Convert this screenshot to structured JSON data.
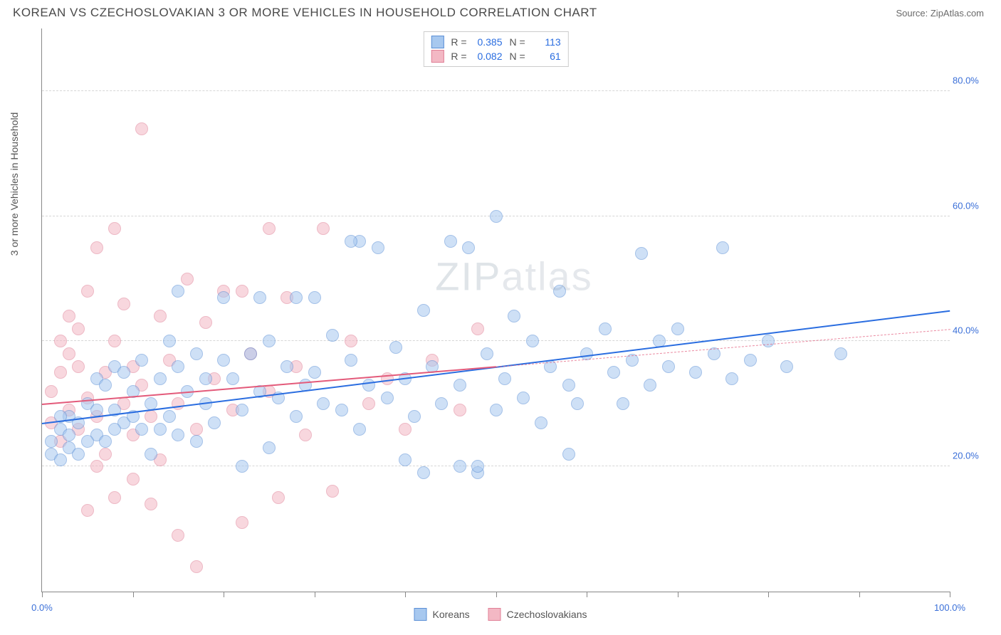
{
  "title": "KOREAN VS CZECHOSLOVAKIAN 3 OR MORE VEHICLES IN HOUSEHOLD CORRELATION CHART",
  "source": "Source: ZipAtlas.com",
  "watermark": "ZIPatlas",
  "ylabel": "3 or more Vehicles in Household",
  "colors": {
    "series_a_fill": "#a7c8ef",
    "series_a_stroke": "#5b8fd6",
    "series_a_line": "#2a6de0",
    "series_b_fill": "#f3b8c4",
    "series_b_stroke": "#e07f96",
    "series_b_line": "#e35a7a",
    "tick_label": "#3a6fd8",
    "grid": "#d6d6d6",
    "axis": "#888888",
    "title_color": "#4a4a4a",
    "background": "#ffffff"
  },
  "chart": {
    "type": "scatter",
    "xlim": [
      0,
      100
    ],
    "ylim": [
      0,
      90
    ],
    "yticks": [
      20,
      40,
      60,
      80
    ],
    "ytick_labels": [
      "20.0%",
      "40.0%",
      "60.0%",
      "80.0%"
    ],
    "xticks": [
      0,
      10,
      20,
      30,
      40,
      50,
      60,
      70,
      80,
      90,
      100
    ],
    "xtick_labels_shown": {
      "0": "0.0%",
      "100": "100.0%"
    },
    "point_radius": 9,
    "point_opacity": 0.55
  },
  "series": [
    {
      "key": "koreans",
      "label": "Koreans",
      "stats": {
        "R": "0.385",
        "N": "113"
      },
      "trend": {
        "x1": 0,
        "y1": 27,
        "x2": 100,
        "y2": 45,
        "dash_after_x": null
      },
      "points": [
        [
          1,
          22
        ],
        [
          1,
          24
        ],
        [
          2,
          21
        ],
        [
          2,
          26
        ],
        [
          3,
          23
        ],
        [
          3,
          28
        ],
        [
          4,
          27
        ],
        [
          5,
          30
        ],
        [
          6,
          25
        ],
        [
          6,
          34
        ],
        [
          7,
          24
        ],
        [
          8,
          29
        ],
        [
          8,
          36
        ],
        [
          9,
          27
        ],
        [
          10,
          32
        ],
        [
          11,
          26
        ],
        [
          11,
          37
        ],
        [
          12,
          30
        ],
        [
          13,
          34
        ],
        [
          14,
          28
        ],
        [
          15,
          36
        ],
        [
          15,
          25
        ],
        [
          16,
          32
        ],
        [
          17,
          38
        ],
        [
          18,
          30
        ],
        [
          19,
          27
        ],
        [
          20,
          47
        ],
        [
          21,
          34
        ],
        [
          22,
          29
        ],
        [
          23,
          38
        ],
        [
          24,
          32
        ],
        [
          25,
          40
        ],
        [
          26,
          31
        ],
        [
          27,
          36
        ],
        [
          28,
          47
        ],
        [
          28,
          28
        ],
        [
          29,
          33
        ],
        [
          30,
          35
        ],
        [
          31,
          30
        ],
        [
          32,
          41
        ],
        [
          33,
          29
        ],
        [
          34,
          37
        ],
        [
          35,
          26
        ],
        [
          36,
          33
        ],
        [
          37,
          55
        ],
        [
          38,
          31
        ],
        [
          39,
          39
        ],
        [
          40,
          34
        ],
        [
          41,
          28
        ],
        [
          42,
          45
        ],
        [
          43,
          36
        ],
        [
          44,
          30
        ],
        [
          45,
          56
        ],
        [
          46,
          33
        ],
        [
          47,
          55
        ],
        [
          48,
          19
        ],
        [
          49,
          38
        ],
        [
          50,
          29
        ],
        [
          50,
          60
        ],
        [
          51,
          34
        ],
        [
          52,
          44
        ],
        [
          53,
          31
        ],
        [
          54,
          40
        ],
        [
          55,
          27
        ],
        [
          56,
          36
        ],
        [
          57,
          48
        ],
        [
          58,
          33
        ],
        [
          59,
          30
        ],
        [
          60,
          38
        ],
        [
          62,
          42
        ],
        [
          63,
          35
        ],
        [
          64,
          30
        ],
        [
          65,
          37
        ],
        [
          66,
          54
        ],
        [
          67,
          33
        ],
        [
          68,
          40
        ],
        [
          69,
          36
        ],
        [
          70,
          42
        ],
        [
          72,
          35
        ],
        [
          74,
          38
        ],
        [
          75,
          55
        ],
        [
          76,
          34
        ],
        [
          78,
          37
        ],
        [
          80,
          40
        ],
        [
          82,
          36
        ],
        [
          88,
          38
        ],
        [
          48,
          20
        ],
        [
          40,
          21
        ],
        [
          35,
          56
        ],
        [
          30,
          47
        ],
        [
          25,
          23
        ],
        [
          22,
          20
        ],
        [
          20,
          37
        ],
        [
          18,
          34
        ],
        [
          17,
          24
        ],
        [
          15,
          48
        ],
        [
          14,
          40
        ],
        [
          13,
          26
        ],
        [
          12,
          22
        ],
        [
          10,
          28
        ],
        [
          9,
          35
        ],
        [
          8,
          26
        ],
        [
          7,
          33
        ],
        [
          6,
          29
        ],
        [
          5,
          24
        ],
        [
          4,
          22
        ],
        [
          3,
          25
        ],
        [
          2,
          28
        ],
        [
          24,
          47
        ],
        [
          34,
          56
        ],
        [
          42,
          19
        ],
        [
          46,
          20
        ],
        [
          58,
          22
        ]
      ]
    },
    {
      "key": "czechoslovakians",
      "label": "Czechoslovakians",
      "stats": {
        "R": "0.082",
        "N": "61"
      },
      "trend": {
        "x1": 0,
        "y1": 30,
        "x2": 100,
        "y2": 42,
        "dash_after_x": 50
      },
      "points": [
        [
          1,
          27
        ],
        [
          1,
          32
        ],
        [
          2,
          24
        ],
        [
          2,
          35
        ],
        [
          3,
          29
        ],
        [
          3,
          38
        ],
        [
          4,
          26
        ],
        [
          4,
          42
        ],
        [
          5,
          31
        ],
        [
          5,
          48
        ],
        [
          6,
          28
        ],
        [
          6,
          55
        ],
        [
          7,
          35
        ],
        [
          7,
          22
        ],
        [
          8,
          40
        ],
        [
          8,
          58
        ],
        [
          9,
          30
        ],
        [
          9,
          46
        ],
        [
          10,
          36
        ],
        [
          10,
          25
        ],
        [
          11,
          74
        ],
        [
          11,
          33
        ],
        [
          12,
          28
        ],
        [
          13,
          44
        ],
        [
          13,
          21
        ],
        [
          14,
          37
        ],
        [
          15,
          30
        ],
        [
          16,
          50
        ],
        [
          17,
          26
        ],
        [
          18,
          43
        ],
        [
          19,
          34
        ],
        [
          20,
          48
        ],
        [
          21,
          29
        ],
        [
          22,
          11
        ],
        [
          23,
          38
        ],
        [
          25,
          32
        ],
        [
          26,
          15
        ],
        [
          27,
          47
        ],
        [
          28,
          36
        ],
        [
          29,
          25
        ],
        [
          31,
          58
        ],
        [
          32,
          16
        ],
        [
          34,
          40
        ],
        [
          36,
          30
        ],
        [
          38,
          34
        ],
        [
          40,
          26
        ],
        [
          43,
          37
        ],
        [
          46,
          29
        ],
        [
          48,
          42
        ],
        [
          17,
          4
        ],
        [
          15,
          9
        ],
        [
          12,
          14
        ],
        [
          10,
          18
        ],
        [
          8,
          15
        ],
        [
          6,
          20
        ],
        [
          5,
          13
        ],
        [
          4,
          36
        ],
        [
          3,
          44
        ],
        [
          2,
          40
        ],
        [
          25,
          58
        ],
        [
          22,
          48
        ]
      ]
    }
  ],
  "legend_bottom": [
    {
      "label": "Koreans",
      "series": "koreans"
    },
    {
      "label": "Czechoslovakians",
      "series": "czechoslovakians"
    }
  ]
}
